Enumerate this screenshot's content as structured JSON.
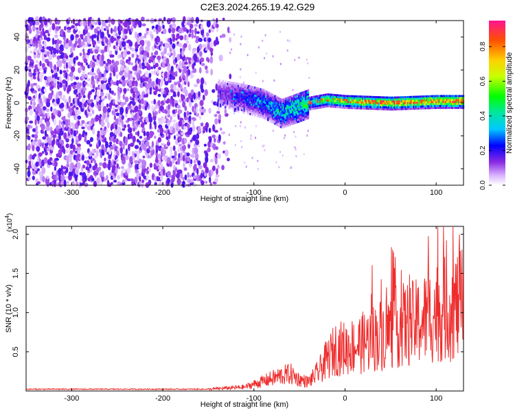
{
  "chart_data": [
    {
      "type": "heatmap",
      "title": "C2E3.2024.265.19.42.G29",
      "xlabel": "Height of straight line (km)",
      "ylabel": "Frequency (Hz)",
      "xlim": [
        -350,
        130
      ],
      "ylim": [
        -50,
        50
      ],
      "xticks": [
        -300,
        -200,
        -100,
        0,
        100
      ],
      "yticks": [
        -40,
        -20,
        0,
        20,
        40
      ],
      "colorbar": {
        "label": "Normalized spectral amplitude",
        "range": [
          0.0,
          0.95
        ],
        "ticks": [
          "0.0",
          "0.2",
          "0.4",
          "0.6",
          "0.8"
        ],
        "tick_values": [
          0.0,
          0.2,
          0.4,
          0.6,
          0.8
        ]
      },
      "regions": [
        {
          "description": "broadband noise",
          "x_range": [
            -350,
            -125
          ],
          "freq_range": [
            -50,
            50
          ],
          "amplitude": 0.08
        },
        {
          "description": "signal band",
          "x_range": [
            -140,
            130
          ],
          "center_freq": [
            [
              -140,
              6
            ],
            [
              -110,
              3
            ],
            [
              -90,
              0
            ],
            [
              -70,
              -6
            ],
            [
              -55,
              -3
            ],
            [
              -40,
              0
            ],
            [
              -20,
              2
            ],
            [
              0,
              1
            ],
            [
              50,
              0
            ],
            [
              100,
              1
            ],
            [
              130,
              1
            ]
          ],
          "amplitude_trend": [
            [
              -140,
              0.15
            ],
            [
              -90,
              0.3
            ],
            [
              -50,
              0.45
            ],
            [
              0,
              0.7
            ],
            [
              130,
              0.85
            ]
          ]
        }
      ]
    },
    {
      "type": "line",
      "xlabel": "Height of straight line (km)",
      "ylabel": "SNR (10 * v/v)",
      "scale_label": "(x10",
      "scale_exp": "4",
      "scale_close": ")",
      "xlim": [
        -350,
        130
      ],
      "ylim": [
        0,
        2.1
      ],
      "xticks": [
        -300,
        -200,
        -100,
        0,
        100
      ],
      "yticks": [
        "0.5",
        "1.0",
        "1.5",
        "2.0"
      ],
      "ytick_values": [
        0.5,
        1.0,
        1.5,
        2.0
      ],
      "color": "#ee2c2c",
      "envelope": [
        [
          -350,
          0.03
        ],
        [
          -150,
          0.03
        ],
        [
          -110,
          0.07
        ],
        [
          -90,
          0.17
        ],
        [
          -70,
          0.27
        ],
        [
          -60,
          0.3
        ],
        [
          -50,
          0.2
        ],
        [
          -40,
          0.16
        ],
        [
          -30,
          0.32
        ],
        [
          -20,
          0.55
        ],
        [
          -10,
          0.75
        ],
        [
          0,
          0.75
        ],
        [
          20,
          0.85
        ],
        [
          40,
          1.0
        ],
        [
          60,
          1.15
        ],
        [
          80,
          1.2
        ],
        [
          100,
          1.4
        ],
        [
          115,
          1.45
        ],
        [
          130,
          1.55
        ]
      ]
    }
  ]
}
